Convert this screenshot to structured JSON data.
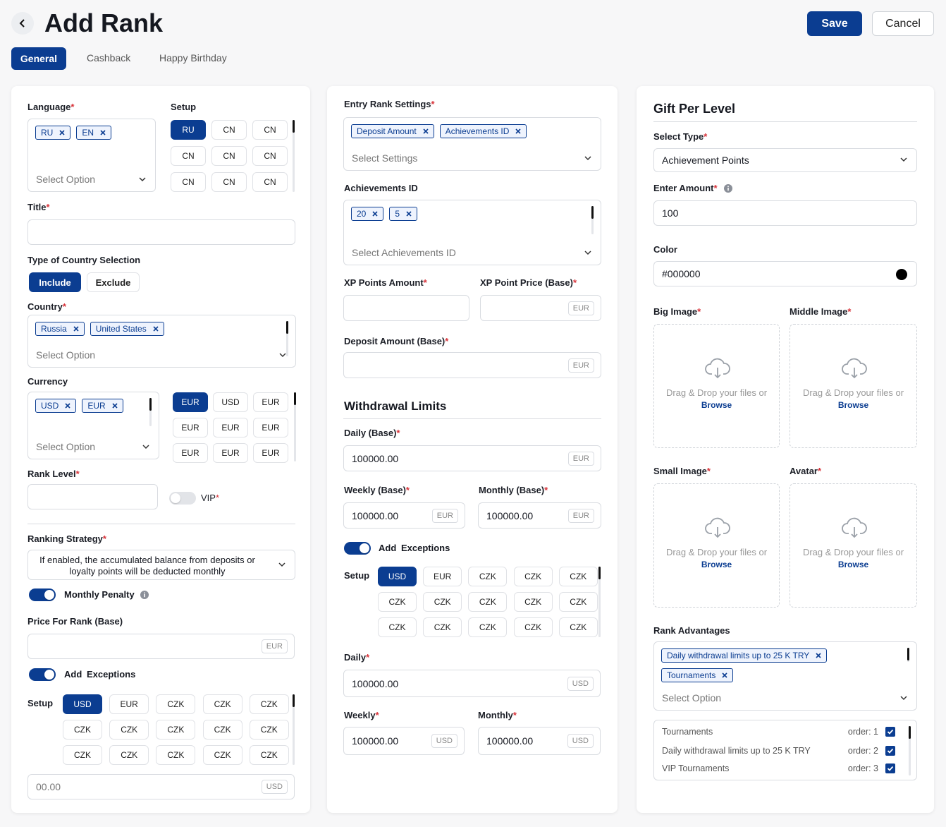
{
  "required_mark": "*",
  "header": {
    "title": "Add Rank",
    "save": "Save",
    "cancel": "Cancel"
  },
  "tabs": [
    "General",
    "Cashback",
    "Happy Birthday"
  ],
  "general": {
    "language": {
      "label": "Language",
      "tags": [
        "RU",
        "EN"
      ],
      "placeholder": "Select Option"
    },
    "setup": {
      "label": "Setup",
      "options": [
        "RU",
        "CN",
        "CN",
        "CN",
        "CN",
        "CN",
        "CN",
        "CN",
        "CN"
      ]
    },
    "title": {
      "label": "Title"
    },
    "country_selection": {
      "label": "Type of Country Selection",
      "options": [
        "Include",
        "Exclude"
      ]
    },
    "country": {
      "label": "Country",
      "tags": [
        "Russia",
        "United States"
      ],
      "placeholder": "Select Option"
    },
    "currency": {
      "label": "Currency",
      "tags": [
        "USD",
        "EUR"
      ],
      "placeholder": "Select Option",
      "options": [
        "EUR",
        "USD",
        "EUR",
        "EUR",
        "EUR",
        "EUR",
        "EUR",
        "EUR",
        "EUR"
      ]
    },
    "rank_level": {
      "label": "Rank Level",
      "vip": "VIP"
    },
    "ranking_strategy": {
      "label": "Ranking Strategy",
      "value": "If enabled, the accumulated balance from deposits or loyalty points will be deducted monthly"
    },
    "monthly_penalty": {
      "label": "Monthly Penalty"
    },
    "price_for_rank": {
      "label": "Price For Rank (Base)",
      "unit": "EUR"
    },
    "exceptions": {
      "add": "Add",
      "label": "Exceptions",
      "setup": "Setup",
      "options": [
        "USD",
        "EUR",
        "CZK",
        "CZK",
        "CZK",
        "CZK",
        "CZK",
        "CZK",
        "CZK",
        "CZK",
        "CZK",
        "CZK",
        "CZK",
        "CZK",
        "CZK"
      ],
      "amount": "00.00",
      "unit": "USD"
    }
  },
  "entry": {
    "entry_rank_settings": {
      "label": "Entry Rank Settings",
      "tags": [
        "Deposit Amount",
        "Achievements ID"
      ],
      "placeholder": "Select Settings"
    },
    "achievements_id": {
      "label": "Achievements ID",
      "tags": [
        "20",
        "5"
      ],
      "placeholder": "Select Achievements ID"
    },
    "xp_points_amount": {
      "label": "XP Points Amount"
    },
    "xp_point_price": {
      "label": "XP Point Price (Base)",
      "unit": "EUR"
    },
    "deposit_amount": {
      "label": "Deposit Amount (Base)",
      "unit": "EUR"
    },
    "withdrawal_limits": {
      "title": "Withdrawal Limits",
      "daily": {
        "label": "Daily (Base)",
        "value": "100000.00",
        "unit": "EUR"
      },
      "weekly": {
        "label": "Weekly (Base)",
        "value": "100000.00",
        "unit": "EUR"
      },
      "monthly": {
        "label": "Monthly (Base)",
        "value": "100000.00",
        "unit": "EUR"
      }
    },
    "exceptions": {
      "add": "Add",
      "label": "Exceptions",
      "setup": "Setup",
      "options": [
        "USD",
        "EUR",
        "CZK",
        "CZK",
        "CZK",
        "CZK",
        "CZK",
        "CZK",
        "CZK",
        "CZK",
        "CZK",
        "CZK",
        "CZK",
        "CZK",
        "CZK"
      ]
    },
    "daily": {
      "label": "Daily",
      "value": "100000.00",
      "unit": "USD"
    },
    "weekly": {
      "label": "Weekly",
      "value": "100000.00",
      "unit": "USD"
    },
    "monthly": {
      "label": "Monthly",
      "value": "100000.00",
      "unit": "USD"
    }
  },
  "gift": {
    "title": "Gift Per Level",
    "select_type": {
      "label": "Select Type",
      "value": "Achievement Points"
    },
    "enter_amount": {
      "label": "Enter Amount",
      "value": "100"
    },
    "color": {
      "label": "Color",
      "value": "#000000"
    },
    "images": [
      {
        "label": "Big Image",
        "hint": "Drag & Drop your files or",
        "browse": "Browse"
      },
      {
        "label": "Middle Image",
        "hint": "Drag & Drop your files or",
        "browse": "Browse"
      },
      {
        "label": "Small Image",
        "hint": "Drag & Drop your files or",
        "browse": "Browse"
      },
      {
        "label": "Avatar",
        "hint": "Drag & Drop your files or",
        "browse": "Browse"
      }
    ],
    "rank_advantages": {
      "label": "Rank Advantages",
      "tags": [
        "Daily withdrawal limits up to 25 K TRY",
        "Tournaments"
      ],
      "placeholder": "Select Option",
      "list": [
        {
          "name": "Tournaments",
          "order": "order: 1"
        },
        {
          "name": "Daily withdrawal limits up to 25 K TRY",
          "order": "order: 2"
        },
        {
          "name": "VIP Tournaments",
          "order": "order: 3"
        }
      ]
    }
  }
}
